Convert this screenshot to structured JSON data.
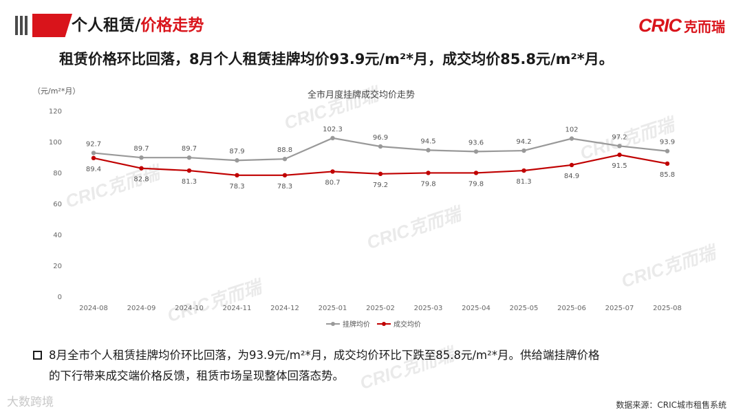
{
  "header": {
    "title_black": "个人租赁/",
    "title_red": "价格走势",
    "logo_mark": "CRIC",
    "logo_text": "克而瑞"
  },
  "subtitle": "租赁价格环比回落，8月个人租赁挂牌均价93.9元/m²*月，成交均价85.8元/m²*月。",
  "watermark": "CRIC克而瑞",
  "chart_data": {
    "type": "line",
    "title": "全市月度挂牌成交均价走势",
    "unit": "（元/m²*月）",
    "categories": [
      "2024-08",
      "2024-09",
      "2024-10",
      "2024-11",
      "2024-12",
      "2025-01",
      "2025-02",
      "2025-03",
      "2025-04",
      "2025-05",
      "2025-06",
      "2025-07",
      "2025-08"
    ],
    "ylim": [
      0,
      120
    ],
    "yticks": [
      0,
      20,
      40,
      60,
      80,
      100,
      120
    ],
    "grid": false,
    "legend": "bottom",
    "series": [
      {
        "name": "挂牌均价",
        "color": "#999999",
        "values": [
          92.7,
          89.7,
          89.7,
          87.9,
          88.8,
          102.3,
          96.9,
          94.5,
          93.6,
          94.2,
          102,
          97.2,
          93.9
        ]
      },
      {
        "name": "成交均价",
        "color": "#c00000",
        "values": [
          89.4,
          82.8,
          81.3,
          78.3,
          78.3,
          80.7,
          79.2,
          79.8,
          79.8,
          81.3,
          84.9,
          91.5,
          85.8
        ]
      }
    ]
  },
  "note": {
    "line1": "8月全市个人租赁挂牌均价环比回落，为93.9元/m²*月，成交均价环比下跌至85.8元/m²*月。供给端挂牌价格",
    "line2": "的下行带来成交端价格反馈，租赁市场呈现整体回落态势。"
  },
  "bottom_logo": "大数跨境",
  "source": "数据来源：CRIC城市租售系统"
}
